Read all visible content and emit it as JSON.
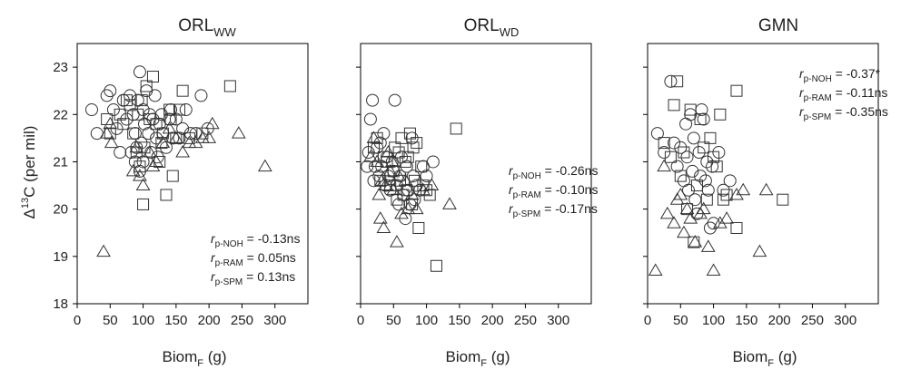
{
  "figure": {
    "y_axis_label": {
      "prefix": "Δ",
      "sup": "13",
      "main": "C (per mil)"
    },
    "y_ticks": [
      "18",
      "19",
      "20",
      "21",
      "22",
      "23"
    ],
    "x_ticks": [
      "0",
      "50",
      "100",
      "150",
      "200",
      "250",
      "300"
    ],
    "x_axis_label": {
      "main": "Biom",
      "sub": "F",
      "suffix": " (g)"
    }
  },
  "chart_data": [
    {
      "type": "scatter",
      "title": {
        "main": "ORL",
        "sub": "WW"
      },
      "xlim": [
        0,
        350
      ],
      "ylim": [
        18,
        23.5
      ],
      "annotations": [
        {
          "r": "r",
          "sub": "p-NOH",
          "text": " = -0.13ns"
        },
        {
          "r": "r",
          "sub": "p-RAM",
          "text": " = 0.05ns"
        },
        {
          "r": "r",
          "sub": "p-SPM",
          "text": " = 0.13ns"
        }
      ],
      "circles": [
        [
          22,
          22.1
        ],
        [
          30,
          21.6
        ],
        [
          45,
          22.4
        ],
        [
          50,
          22.5
        ],
        [
          55,
          22.1
        ],
        [
          60,
          21.7
        ],
        [
          65,
          21.2
        ],
        [
          70,
          22.3
        ],
        [
          75,
          21.9
        ],
        [
          80,
          22.4
        ],
        [
          82,
          21.2
        ],
        [
          85,
          22.0
        ],
        [
          88,
          21.6
        ],
        [
          90,
          21.3
        ],
        [
          92,
          22.3
        ],
        [
          95,
          22.9
        ],
        [
          97,
          21.4
        ],
        [
          100,
          22.1
        ],
        [
          102,
          21.8
        ],
        [
          105,
          22.5
        ],
        [
          108,
          21.6
        ],
        [
          110,
          22.0
        ],
        [
          112,
          21.2
        ],
        [
          115,
          21.9
        ],
        [
          118,
          22.4
        ],
        [
          120,
          21.5
        ],
        [
          122,
          21.1
        ],
        [
          125,
          21.8
        ],
        [
          128,
          22.0
        ],
        [
          130,
          21.6
        ],
        [
          135,
          21.3
        ],
        [
          140,
          21.9
        ],
        [
          142,
          22.1
        ],
        [
          145,
          21.5
        ],
        [
          150,
          21.9
        ],
        [
          155,
          21.5
        ],
        [
          160,
          21.7
        ],
        [
          165,
          22.1
        ],
        [
          172,
          21.6
        ],
        [
          180,
          21.6
        ],
        [
          188,
          22.4
        ],
        [
          198,
          21.7
        ],
        [
          100,
          21.0
        ],
        [
          95,
          20.8
        ],
        [
          88,
          21.0
        ]
      ],
      "squares": [
        [
          45,
          21.9
        ],
        [
          50,
          21.6
        ],
        [
          65,
          22.0
        ],
        [
          70,
          21.8
        ],
        [
          75,
          22.3
        ],
        [
          80,
          22.2
        ],
        [
          85,
          21.6
        ],
        [
          90,
          21.2
        ],
        [
          92,
          22.0
        ],
        [
          95,
          20.9
        ],
        [
          98,
          22.3
        ],
        [
          100,
          20.1
        ],
        [
          102,
          21.3
        ],
        [
          105,
          22.6
        ],
        [
          110,
          21.9
        ],
        [
          115,
          22.8
        ],
        [
          120,
          21.8
        ],
        [
          125,
          21.0
        ],
        [
          128,
          21.4
        ],
        [
          130,
          21.6
        ],
        [
          135,
          20.3
        ],
        [
          140,
          22.1
        ],
        [
          142,
          21.9
        ],
        [
          145,
          20.7
        ],
        [
          150,
          21.5
        ],
        [
          155,
          22.1
        ],
        [
          160,
          22.5
        ],
        [
          170,
          21.5
        ],
        [
          190,
          21.6
        ],
        [
          232,
          22.6
        ]
      ],
      "triangles": [
        [
          40,
          19.1
        ],
        [
          45,
          21.6
        ],
        [
          50,
          21.8
        ],
        [
          52,
          21.4
        ],
        [
          85,
          20.8
        ],
        [
          90,
          21.3
        ],
        [
          95,
          20.7
        ],
        [
          100,
          20.5
        ],
        [
          110,
          21.2
        ],
        [
          115,
          20.9
        ],
        [
          120,
          21.0
        ],
        [
          130,
          21.4
        ],
        [
          140,
          21.7
        ],
        [
          150,
          21.5
        ],
        [
          160,
          21.2
        ],
        [
          170,
          21.4
        ],
        [
          180,
          21.4
        ],
        [
          190,
          21.5
        ],
        [
          200,
          21.5
        ],
        [
          205,
          21.8
        ],
        [
          245,
          21.6
        ],
        [
          285,
          20.9
        ]
      ]
    },
    {
      "type": "scatter",
      "title": {
        "main": "ORL",
        "sub": "WD"
      },
      "xlim": [
        0,
        350
      ],
      "ylim": [
        18,
        23.5
      ],
      "annotations": [
        {
          "r": "r",
          "sub": "p-NOH",
          "text": " = -0.26ns"
        },
        {
          "r": "r",
          "sub": "p-RAM",
          "text": " = -0.10ns"
        },
        {
          "r": "r",
          "sub": "p-SPM",
          "text": " = -0.17ns"
        }
      ],
      "circles": [
        [
          10,
          20.9
        ],
        [
          12,
          21.2
        ],
        [
          15,
          21.9
        ],
        [
          18,
          22.3
        ],
        [
          20,
          20.6
        ],
        [
          22,
          20.9
        ],
        [
          25,
          21.3
        ],
        [
          28,
          20.7
        ],
        [
          30,
          21.4
        ],
        [
          32,
          20.9
        ],
        [
          35,
          21.6
        ],
        [
          38,
          20.5
        ],
        [
          40,
          21.1
        ],
        [
          42,
          20.7
        ],
        [
          45,
          20.4
        ],
        [
          48,
          21.0
        ],
        [
          50,
          20.8
        ],
        [
          52,
          22.3
        ],
        [
          55,
          20.5
        ],
        [
          58,
          20.1
        ],
        [
          60,
          20.7
        ],
        [
          62,
          21.1
        ],
        [
          65,
          20.3
        ],
        [
          68,
          19.8
        ],
        [
          70,
          20.9
        ],
        [
          72,
          20.4
        ],
        [
          75,
          20.1
        ],
        [
          78,
          21.5
        ],
        [
          80,
          20.7
        ],
        [
          82,
          20.2
        ],
        [
          85,
          20.5
        ],
        [
          90,
          20.4
        ],
        [
          95,
          20.9
        ],
        [
          100,
          20.7
        ],
        [
          110,
          21.0
        ]
      ],
      "squares": [
        [
          20,
          21.3
        ],
        [
          25,
          21.5
        ],
        [
          30,
          20.6
        ],
        [
          35,
          21.1
        ],
        [
          40,
          21.0
        ],
        [
          45,
          20.5
        ],
        [
          50,
          20.8
        ],
        [
          52,
          21.3
        ],
        [
          55,
          20.2
        ],
        [
          58,
          21.2
        ],
        [
          60,
          20.6
        ],
        [
          62,
          21.5
        ],
        [
          65,
          20.3
        ],
        [
          68,
          21.0
        ],
        [
          70,
          20.4
        ],
        [
          72,
          21.1
        ],
        [
          75,
          21.6
        ],
        [
          78,
          20.1
        ],
        [
          80,
          21.3
        ],
        [
          82,
          20.6
        ],
        [
          85,
          21.4
        ],
        [
          88,
          19.6
        ],
        [
          92,
          20.9
        ],
        [
          95,
          20.5
        ],
        [
          100,
          20.4
        ],
        [
          105,
          20.3
        ],
        [
          115,
          18.8
        ],
        [
          145,
          21.7
        ]
      ],
      "triangles": [
        [
          15,
          21.1
        ],
        [
          20,
          21.5
        ],
        [
          25,
          21.0
        ],
        [
          28,
          20.3
        ],
        [
          30,
          19.8
        ],
        [
          32,
          20.6
        ],
        [
          35,
          19.6
        ],
        [
          38,
          20.5
        ],
        [
          42,
          21.2
        ],
        [
          45,
          20.8
        ],
        [
          48,
          21.0
        ],
        [
          50,
          20.4
        ],
        [
          55,
          19.3
        ],
        [
          58,
          20.7
        ],
        [
          62,
          19.9
        ],
        [
          68,
          20.6
        ],
        [
          72,
          20.0
        ],
        [
          78,
          20.3
        ],
        [
          85,
          20.0
        ],
        [
          95,
          20.4
        ],
        [
          108,
          20.5
        ],
        [
          135,
          20.1
        ]
      ]
    },
    {
      "type": "scatter",
      "title": {
        "main": "GMN",
        "sub": ""
      },
      "xlim": [
        0,
        350
      ],
      "ylim": [
        18,
        23.5
      ],
      "annotations": [
        {
          "r": "r",
          "sub": "p-NOH",
          "text": " = -0.37*"
        },
        {
          "r": "r",
          "sub": "p-RAM",
          "text": " = -0.11ns"
        },
        {
          "r": "r",
          "sub": "p-SPM",
          "text": " = -0.35ns"
        }
      ],
      "circles": [
        [
          15,
          21.6
        ],
        [
          25,
          21.2
        ],
        [
          35,
          22.7
        ],
        [
          40,
          21.4
        ],
        [
          45,
          20.9
        ],
        [
          50,
          21.3
        ],
        [
          55,
          20.6
        ],
        [
          58,
          21.8
        ],
        [
          60,
          21.1
        ],
        [
          62,
          20.4
        ],
        [
          65,
          22.0
        ],
        [
          68,
          20.8
        ],
        [
          70,
          21.5
        ],
        [
          72,
          20.2
        ],
        [
          75,
          19.9
        ],
        [
          78,
          21.2
        ],
        [
          80,
          20.7
        ],
        [
          82,
          22.1
        ],
        [
          85,
          21.9
        ],
        [
          88,
          20.6
        ],
        [
          90,
          21.0
        ],
        [
          92,
          20.4
        ],
        [
          95,
          19.6
        ],
        [
          98,
          20.9
        ],
        [
          100,
          19.7
        ],
        [
          108,
          21.2
        ],
        [
          115,
          20.4
        ],
        [
          125,
          20.6
        ]
      ],
      "squares": [
        [
          25,
          21.4
        ],
        [
          35,
          21.1
        ],
        [
          40,
          22.2
        ],
        [
          45,
          22.7
        ],
        [
          50,
          20.7
        ],
        [
          55,
          21.2
        ],
        [
          60,
          20.0
        ],
        [
          65,
          22.1
        ],
        [
          70,
          19.3
        ],
        [
          75,
          20.5
        ],
        [
          80,
          21.9
        ],
        [
          85,
          21.3
        ],
        [
          90,
          20.2
        ],
        [
          95,
          21.5
        ],
        [
          100,
          21.1
        ],
        [
          105,
          20.9
        ],
        [
          110,
          22.0
        ],
        [
          115,
          20.2
        ],
        [
          120,
          20.3
        ],
        [
          135,
          22.5
        ],
        [
          135,
          19.6
        ],
        [
          205,
          20.2
        ]
      ],
      "triangles": [
        [
          12,
          18.7
        ],
        [
          25,
          20.9
        ],
        [
          30,
          19.9
        ],
        [
          40,
          19.7
        ],
        [
          45,
          20.2
        ],
        [
          50,
          20.3
        ],
        [
          55,
          19.5
        ],
        [
          60,
          20.0
        ],
        [
          65,
          19.8
        ],
        [
          72,
          19.3
        ],
        [
          80,
          19.9
        ],
        [
          85,
          20.0
        ],
        [
          92,
          19.2
        ],
        [
          100,
          18.7
        ],
        [
          110,
          19.7
        ],
        [
          120,
          19.8
        ],
        [
          135,
          20.3
        ],
        [
          145,
          20.4
        ],
        [
          170,
          19.1
        ],
        [
          180,
          20.4
        ]
      ]
    }
  ]
}
